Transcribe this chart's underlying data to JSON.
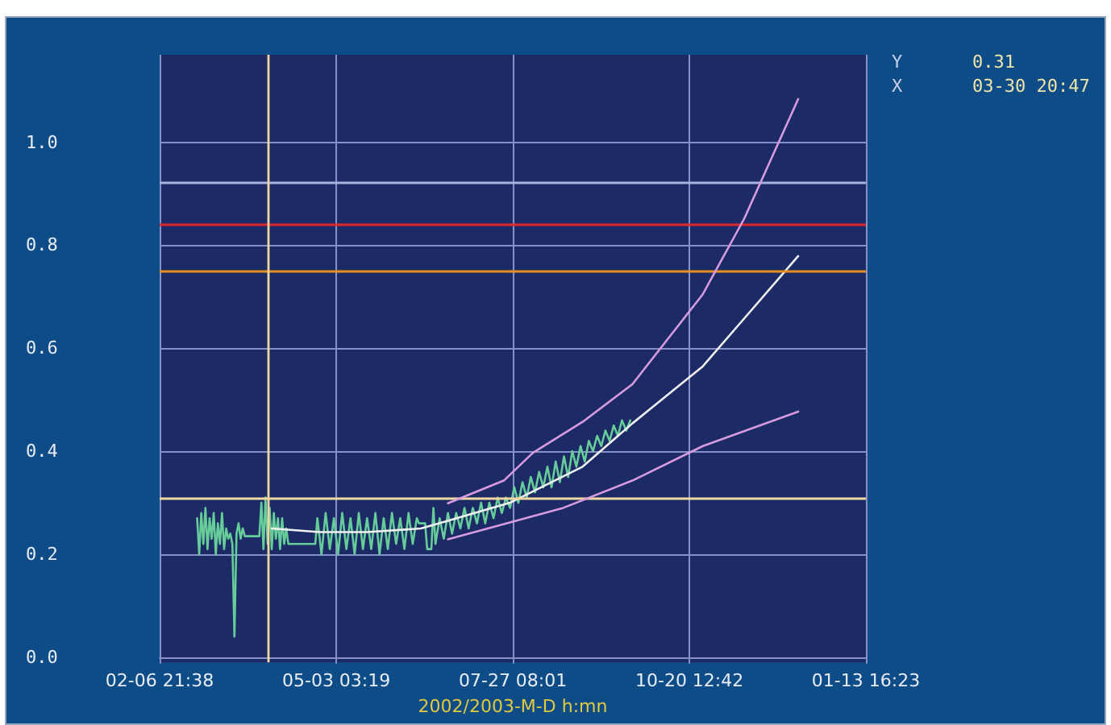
{
  "chart_data": {
    "type": "line",
    "xlabel": "2002/2003-M-D h:mn",
    "xlim": [
      "2002-02-06T21:38",
      "2003-01-13T16:23"
    ],
    "xticks": [
      {
        "value": "2002-02-06T21:38",
        "label": "02-06 21:38"
      },
      {
        "value": "2002-05-03T03:19",
        "label": "05-03 03:19"
      },
      {
        "value": "2002-07-27T08:01",
        "label": "07-27 08:01"
      },
      {
        "value": "2002-10-20T12:42",
        "label": "10-20 12:42"
      },
      {
        "value": "2003-01-13T16:23",
        "label": "01-13 16:23"
      }
    ],
    "ylim": [
      -0.01,
      1.17
    ],
    "yticks": [
      {
        "value": 0,
        "label": "0.0"
      },
      {
        "value": 0.2,
        "label": "0.2"
      },
      {
        "value": 0.4,
        "label": "0.4"
      },
      {
        "value": 0.6,
        "label": "0.6"
      },
      {
        "value": 0.8,
        "label": "0.8"
      },
      {
        "value": 1,
        "label": "1.0"
      }
    ],
    "grid": true,
    "marker": "none",
    "line_style": "solid",
    "series": [
      {
        "color": "#66cc99",
        "x": [
          "2002-02-25",
          "2002-02-26",
          "2002-02-27",
          "2002-02-28",
          "2002-03-01",
          "2002-03-02",
          "2002-03-03",
          "2002-03-04",
          "2002-03-05",
          "2002-03-06",
          "2002-03-07",
          "2002-03-08",
          "2002-03-09",
          "2002-03-10",
          "2002-03-11",
          "2002-03-12",
          "2002-03-13",
          "2002-03-14",
          "2002-03-15",
          "2002-03-16",
          "2002-03-17",
          "2002-03-18",
          "2002-03-19",
          "2002-03-20",
          "2002-03-27",
          "2002-03-28",
          "2002-03-29",
          "2002-03-30",
          "2002-03-31",
          "2002-04-01",
          "2002-04-02",
          "2002-04-03",
          "2002-04-04",
          "2002-04-05",
          "2002-04-06",
          "2002-04-07",
          "2002-04-08",
          "2002-04-09",
          "2002-04-10",
          "2002-04-23",
          "2002-04-24",
          "2002-04-26",
          "2002-04-28",
          "2002-04-30",
          "2002-05-02",
          "2002-05-04",
          "2002-05-06",
          "2002-05-08",
          "2002-05-10",
          "2002-05-12",
          "2002-05-14",
          "2002-05-16",
          "2002-05-18",
          "2002-05-20",
          "2002-05-22",
          "2002-05-24",
          "2002-05-26",
          "2002-05-28",
          "2002-05-30",
          "2002-06-01",
          "2002-06-03",
          "2002-06-05",
          "2002-06-07",
          "2002-06-09",
          "2002-06-11",
          "2002-06-12",
          "2002-06-15",
          "2002-06-16",
          "2002-06-18",
          "2002-06-19",
          "2002-06-20",
          "2002-06-22",
          "2002-06-24",
          "2002-06-26",
          "2002-06-28",
          "2002-06-30",
          "2002-07-02",
          "2002-07-04",
          "2002-07-06",
          "2002-07-08",
          "2002-07-10",
          "2002-07-12",
          "2002-07-14",
          "2002-07-16",
          "2002-07-18",
          "2002-07-20",
          "2002-07-22",
          "2002-07-24",
          "2002-07-26",
          "2002-07-28",
          "2002-07-30",
          "2002-08-01",
          "2002-08-03",
          "2002-08-05",
          "2002-08-07",
          "2002-08-09",
          "2002-08-11",
          "2002-08-13",
          "2002-08-15",
          "2002-08-17",
          "2002-08-19",
          "2002-08-21",
          "2002-08-23",
          "2002-08-25",
          "2002-08-27",
          "2002-08-29",
          "2002-08-31",
          "2002-09-02",
          "2002-09-04",
          "2002-09-06",
          "2002-09-08",
          "2002-09-10",
          "2002-09-12",
          "2002-09-14",
          "2002-09-16",
          "2002-09-18",
          "2002-09-20",
          "2002-09-22"
        ],
        "values": [
          0.27,
          0.2,
          0.28,
          0.22,
          0.29,
          0.21,
          0.27,
          0.23,
          0.28,
          0.2,
          0.26,
          0.22,
          0.28,
          0.21,
          0.25,
          0.23,
          0.24,
          0.22,
          0.04,
          0.24,
          0.26,
          0.23,
          0.25,
          0.235,
          0.235,
          0.3,
          0.21,
          0.31,
          0.22,
          0.29,
          0.21,
          0.28,
          0.23,
          0.27,
          0.21,
          0.27,
          0.22,
          0.25,
          0.22,
          0.22,
          0.27,
          0.2,
          0.28,
          0.21,
          0.27,
          0.2,
          0.28,
          0.21,
          0.27,
          0.2,
          0.28,
          0.21,
          0.27,
          0.21,
          0.28,
          0.2,
          0.27,
          0.21,
          0.28,
          0.22,
          0.27,
          0.21,
          0.28,
          0.22,
          0.27,
          0.26,
          0.26,
          0.21,
          0.21,
          0.29,
          0.22,
          0.27,
          0.23,
          0.28,
          0.24,
          0.28,
          0.25,
          0.29,
          0.25,
          0.29,
          0.26,
          0.3,
          0.26,
          0.3,
          0.27,
          0.31,
          0.28,
          0.31,
          0.29,
          0.33,
          0.3,
          0.34,
          0.31,
          0.35,
          0.32,
          0.36,
          0.33,
          0.37,
          0.33,
          0.38,
          0.34,
          0.39,
          0.35,
          0.4,
          0.37,
          0.41,
          0.38,
          0.42,
          0.4,
          0.43,
          0.41,
          0.44,
          0.42,
          0.45,
          0.43,
          0.46,
          0.44,
          0.46
        ]
      },
      {
        "color": "#f0f0f0",
        "x": [
          "2002-04-02",
          "2002-04-25",
          "2002-05-18",
          "2002-06-13",
          "2002-06-26",
          "2002-07-26",
          "2002-08-30",
          "2002-09-23",
          "2002-10-27",
          "2002-11-16",
          "2002-12-12"
        ],
        "values": [
          0.25,
          0.243,
          0.243,
          0.25,
          0.265,
          0.3,
          0.37,
          0.454,
          0.565,
          0.658,
          0.779
        ]
      },
      {
        "color": "#d89be0",
        "x": [
          "2002-06-26",
          "2002-07-23",
          "2002-08-06",
          "2002-08-30",
          "2002-09-23",
          "2002-10-27",
          "2002-11-16",
          "2002-12-12"
        ],
        "values": [
          0.299,
          0.343,
          0.397,
          0.457,
          0.53,
          0.705,
          0.852,
          1.084
        ]
      },
      {
        "color": "#d89be0",
        "x": [
          "2002-06-26",
          "2002-08-20",
          "2002-09-23",
          "2002-10-27",
          "2002-12-12"
        ],
        "values": [
          0.229,
          0.289,
          0.343,
          0.41,
          0.477
        ]
      }
    ],
    "ref_lines": [
      {
        "axis": "y",
        "value": 0.923,
        "color": "#a8b0e0"
      },
      {
        "axis": "y",
        "value": 0.84,
        "color": "#e02828"
      },
      {
        "axis": "y",
        "value": 0.75,
        "color": "#e8901c"
      },
      {
        "axis": "y",
        "value": 0.31,
        "color": "#f0d8a0"
      },
      {
        "axis": "x",
        "value": "2002-03-30T20:47",
        "color": "#f0d8a0"
      }
    ],
    "annotations": [
      "Y",
      "0.31",
      "X",
      "03-30 20:47"
    ]
  }
}
